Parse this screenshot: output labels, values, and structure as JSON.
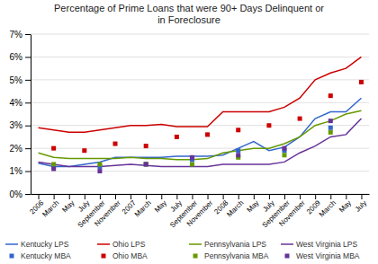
{
  "chart_data": {
    "type": "line",
    "title": "Percentage of Prime Loans that were 90+ Days Delinquent or\nin Foreclosure",
    "categories": [
      "2006",
      "March",
      "May",
      "July",
      "September",
      "November",
      "2007",
      "March",
      "May",
      "July",
      "September",
      "November",
      "2008",
      "March",
      "May",
      "July",
      "September",
      "November",
      "2009",
      "March",
      "May",
      "July"
    ],
    "ylim": [
      0,
      7
    ],
    "yticks": [
      {
        "value": 0,
        "label": "0%"
      },
      {
        "value": 1,
        "label": "1%"
      },
      {
        "value": 2,
        "label": "2%"
      },
      {
        "value": 3,
        "label": "3%"
      },
      {
        "value": 4,
        "label": "4%"
      },
      {
        "value": 5,
        "label": "5%"
      },
      {
        "value": 6,
        "label": "6%"
      },
      {
        "value": 7,
        "label": "7%"
      }
    ],
    "grid": true,
    "legend": "bottom",
    "series": [
      {
        "name": "Kentucky LPS",
        "type": "line",
        "color": "#3366CC",
        "values": [
          1.35,
          1.2,
          1.2,
          1.3,
          1.4,
          1.6,
          1.6,
          1.6,
          1.6,
          1.65,
          1.65,
          1.65,
          1.7,
          2.0,
          2.3,
          1.9,
          2.05,
          2.5,
          3.3,
          3.6,
          3.6,
          4.2
        ]
      },
      {
        "name": "Ohio LPS",
        "type": "line",
        "color": "#CC0000",
        "values": [
          2.9,
          2.8,
          2.7,
          2.7,
          2.8,
          2.9,
          3.0,
          3.0,
          3.05,
          2.95,
          2.95,
          2.95,
          3.6,
          3.6,
          3.6,
          3.6,
          3.8,
          4.2,
          5.0,
          5.3,
          5.5,
          6.0
        ]
      },
      {
        "name": "Pennsylvania LPS",
        "type": "line",
        "color": "#669900",
        "values": [
          1.8,
          1.6,
          1.55,
          1.55,
          1.55,
          1.55,
          1.6,
          1.55,
          1.55,
          1.5,
          1.5,
          1.55,
          1.8,
          1.9,
          2.0,
          2.0,
          2.2,
          2.5,
          3.0,
          3.2,
          3.5,
          3.65
        ]
      },
      {
        "name": "West Virginia LPS",
        "type": "line",
        "color": "#663399",
        "values": [
          1.4,
          1.3,
          1.2,
          1.2,
          1.2,
          1.25,
          1.3,
          1.25,
          1.2,
          1.2,
          1.2,
          1.2,
          1.3,
          1.3,
          1.3,
          1.3,
          1.4,
          1.8,
          2.1,
          2.5,
          2.6,
          3.3
        ]
      },
      {
        "name": "Kentucky MBA",
        "type": "scatter",
        "marker": "square",
        "color": "#3366CC",
        "values": [
          null,
          1.2,
          null,
          null,
          1.2,
          null,
          null,
          1.3,
          null,
          null,
          1.5,
          null,
          null,
          1.9,
          null,
          null,
          1.9,
          null,
          null,
          2.9,
          null,
          null
        ]
      },
      {
        "name": "Ohio MBA",
        "type": "scatter",
        "marker": "square",
        "color": "#CC0000",
        "values": [
          null,
          2.0,
          null,
          1.9,
          null,
          2.2,
          null,
          2.1,
          null,
          2.5,
          null,
          2.6,
          null,
          2.8,
          null,
          3.0,
          null,
          3.3,
          null,
          4.3,
          null,
          4.9
        ]
      },
      {
        "name": "Pennsylvania MBA",
        "type": "scatter",
        "marker": "square",
        "color": "#669900",
        "values": [
          null,
          1.3,
          null,
          null,
          1.3,
          null,
          null,
          1.3,
          null,
          null,
          1.3,
          null,
          null,
          1.6,
          null,
          null,
          1.7,
          null,
          null,
          2.7,
          null,
          null
        ]
      },
      {
        "name": "West Virginia MBA",
        "type": "scatter",
        "marker": "square",
        "color": "#663399",
        "values": [
          null,
          1.1,
          null,
          null,
          1.0,
          null,
          null,
          1.3,
          null,
          null,
          1.6,
          null,
          null,
          1.7,
          null,
          null,
          2.0,
          null,
          null,
          3.2,
          null,
          null
        ]
      }
    ]
  }
}
